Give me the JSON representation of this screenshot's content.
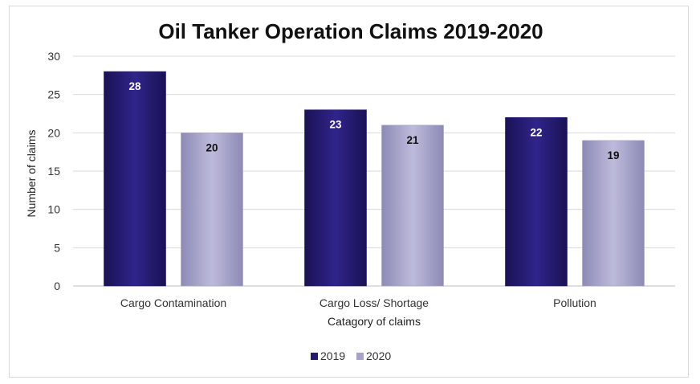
{
  "chart_data": {
    "type": "bar",
    "title": "Oil Tanker Operation Claims 2019-2020",
    "xlabel": "Catagory of claims",
    "ylabel": "Number of claims",
    "categories": [
      "Cargo Contamination",
      "Cargo Loss/ Shortage",
      "Pollution"
    ],
    "series": [
      {
        "name": "2019",
        "values": [
          28,
          23,
          22
        ],
        "color": "#241a6e",
        "label_color": "#ffffff"
      },
      {
        "name": "2020",
        "values": [
          20,
          21,
          19
        ],
        "color": "#a5a3c8",
        "label_color": "#111111"
      }
    ],
    "ylim": [
      0,
      30
    ],
    "yticks": [
      0,
      5,
      10,
      15,
      20,
      25,
      30
    ],
    "grid": true,
    "legend_position": "bottom",
    "data_labels": true
  }
}
